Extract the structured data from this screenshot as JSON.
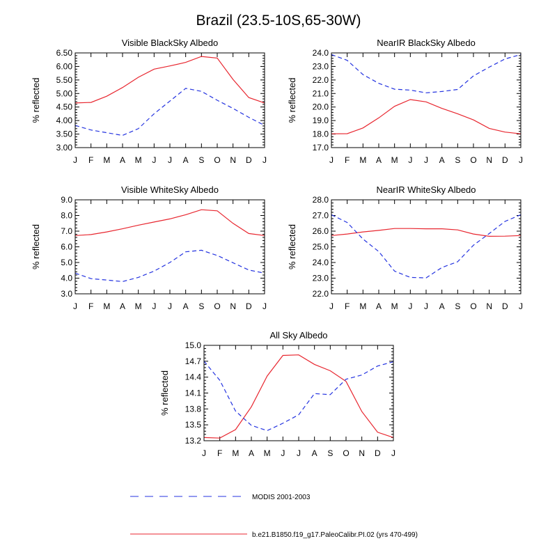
{
  "title": "Brazil (23.5-10S,65-30W)",
  "colors": {
    "model": "#e8262f",
    "obs": "#2433e0"
  },
  "legend": {
    "obs_label": "MODIS 2001-2003",
    "model_label": "b.e21.B1850.f19_g17.PaleoCalibr.PI.02 (yrs 470-499)"
  },
  "chart_data": [
    {
      "type": "line",
      "title": "Visible BlackSky Albedo",
      "ylabel": "% reflected",
      "categories": [
        "J",
        "F",
        "M",
        "A",
        "M",
        "J",
        "J",
        "A",
        "S",
        "O",
        "N",
        "D",
        "J"
      ],
      "ylim": [
        3.0,
        6.5
      ],
      "yticks": [
        "3.00",
        "3.50",
        "4.00",
        "4.50",
        "5.00",
        "5.50",
        "6.00",
        "6.50"
      ],
      "series": [
        {
          "name": "model",
          "values": [
            4.65,
            4.67,
            4.9,
            5.22,
            5.6,
            5.9,
            6.02,
            6.15,
            6.37,
            6.31,
            5.52,
            4.85,
            4.65
          ]
        },
        {
          "name": "obs",
          "values": [
            3.82,
            3.65,
            3.55,
            3.45,
            3.7,
            4.25,
            4.72,
            5.19,
            5.08,
            4.75,
            4.45,
            4.12,
            3.82
          ]
        }
      ]
    },
    {
      "type": "line",
      "title": "NearIR BlackSky Albedo",
      "ylabel": "% reflected",
      "categories": [
        "J",
        "F",
        "M",
        "A",
        "M",
        "J",
        "J",
        "A",
        "S",
        "O",
        "N",
        "D",
        "J"
      ],
      "ylim": [
        17.0,
        24.0
      ],
      "yticks": [
        "17.0",
        "18.0",
        "19.0",
        "20.0",
        "21.0",
        "22.0",
        "23.0",
        "24.0"
      ],
      "series": [
        {
          "name": "model",
          "values": [
            18.02,
            18.03,
            18.45,
            19.2,
            20.05,
            20.55,
            20.38,
            19.9,
            19.5,
            19.05,
            18.42,
            18.15,
            18.02
          ]
        },
        {
          "name": "obs",
          "values": [
            23.88,
            23.45,
            22.4,
            21.75,
            21.32,
            21.25,
            21.05,
            21.15,
            21.3,
            22.3,
            22.95,
            23.55,
            23.88
          ]
        }
      ]
    },
    {
      "type": "line",
      "title": "Visible WhiteSky Albedo",
      "ylabel": "% reflected",
      "categories": [
        "J",
        "F",
        "M",
        "A",
        "M",
        "J",
        "J",
        "A",
        "S",
        "O",
        "N",
        "D",
        "J"
      ],
      "ylim": [
        3.0,
        9.0
      ],
      "yticks": [
        "3.0",
        "4.0",
        "5.0",
        "6.0",
        "7.0",
        "8.0",
        "9.0"
      ],
      "series": [
        {
          "name": "model",
          "values": [
            6.72,
            6.78,
            6.95,
            7.15,
            7.38,
            7.58,
            7.78,
            8.05,
            8.37,
            8.3,
            7.5,
            6.85,
            6.72
          ]
        },
        {
          "name": "obs",
          "values": [
            4.32,
            3.97,
            3.88,
            3.78,
            4.05,
            4.45,
            5.0,
            5.68,
            5.78,
            5.45,
            4.98,
            4.52,
            4.32
          ]
        }
      ]
    },
    {
      "type": "line",
      "title": "NearIR WhiteSky Albedo",
      "ylabel": "% reflected",
      "categories": [
        "J",
        "F",
        "M",
        "A",
        "M",
        "J",
        "J",
        "A",
        "S",
        "O",
        "N",
        "D",
        "J"
      ],
      "ylim": [
        22.0,
        28.0
      ],
      "yticks": [
        "22.0",
        "23.0",
        "24.0",
        "25.0",
        "26.0",
        "27.0",
        "28.0"
      ],
      "series": [
        {
          "name": "model",
          "values": [
            25.72,
            25.82,
            25.95,
            26.05,
            26.17,
            26.17,
            26.15,
            26.15,
            26.08,
            25.82,
            25.67,
            25.68,
            25.72
          ]
        },
        {
          "name": "obs",
          "values": [
            27.05,
            26.55,
            25.5,
            24.7,
            23.45,
            23.05,
            23.02,
            23.68,
            24.05,
            25.1,
            25.85,
            26.62,
            27.05
          ]
        }
      ]
    },
    {
      "type": "line",
      "title": "All Sky Albedo",
      "ylabel": "% reflected",
      "categories": [
        "J",
        "F",
        "M",
        "A",
        "M",
        "J",
        "J",
        "A",
        "S",
        "O",
        "N",
        "D",
        "J"
      ],
      "ylim": [
        13.2,
        15.0
      ],
      "yticks": [
        "13.2",
        "13.5",
        "13.8",
        "14.1",
        "14.4",
        "14.7",
        "15.0"
      ],
      "series": [
        {
          "name": "model",
          "values": [
            13.26,
            13.25,
            13.41,
            13.84,
            14.42,
            14.81,
            14.82,
            14.64,
            14.52,
            14.32,
            13.75,
            13.36,
            13.26
          ]
        },
        {
          "name": "obs",
          "values": [
            14.7,
            14.34,
            13.76,
            13.49,
            13.39,
            13.53,
            13.69,
            14.09,
            14.07,
            14.36,
            14.44,
            14.61,
            14.69
          ]
        }
      ]
    }
  ]
}
